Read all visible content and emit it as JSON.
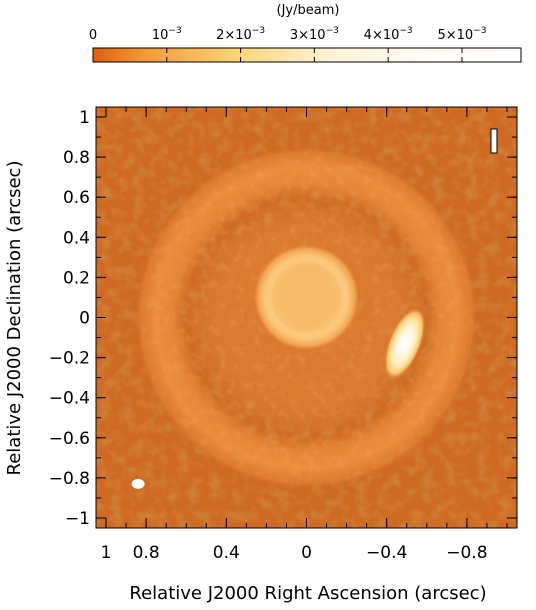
{
  "chart_data": {
    "type": "heatmap",
    "colorbar": {
      "unit_label": "(Jy/beam)",
      "tick_labels": [
        {
          "base": "0",
          "exp": ""
        },
        {
          "base": "10",
          "exp": "−3"
        },
        {
          "base": "2×10",
          "exp": "−3"
        },
        {
          "base": "3×10",
          "exp": "−3"
        },
        {
          "base": "4×10",
          "exp": "−3"
        },
        {
          "base": "5×10",
          "exp": "−3"
        }
      ],
      "tick_values": [
        0,
        0.001,
        0.002,
        0.003,
        0.004,
        0.005
      ],
      "range": [
        0,
        0.0058
      ],
      "colors": [
        "#e06010",
        "#f29a35",
        "#fcd77e",
        "#fffaf0",
        "#ffffff"
      ]
    },
    "xlabel": "Relative J2000 Right Ascension (arcsec)",
    "ylabel": "Relative J2000 Declination (arcsec)",
    "xlim": [
      1.05,
      -1.05
    ],
    "ylim": [
      -1.05,
      1.05
    ],
    "x_ticks": [
      1,
      0.8,
      0.4,
      0,
      -0.4,
      -0.8
    ],
    "x_tick_labels": [
      "1",
      "0.8",
      "0.4",
      "0",
      "−0.4",
      "−0.8"
    ],
    "y_ticks": [
      1,
      0.8,
      0.6,
      0.4,
      0.2,
      0,
      -0.2,
      -0.4,
      -0.6,
      -0.8,
      -1
    ],
    "y_tick_labels": [
      "1",
      "0.8",
      "0.6",
      "0.4",
      "0.2",
      "0",
      "−0.2",
      "−0.4",
      "−0.6",
      "−0.8",
      "−1"
    ],
    "features": [
      {
        "name": "outer ring",
        "center": [
          0,
          0
        ],
        "radius_arcsec": 0.75,
        "brightness": "moderate"
      },
      {
        "name": "inner disk",
        "center": [
          0,
          0.1
        ],
        "radius_arcsec": 0.24,
        "brightness": "high"
      },
      {
        "name": "bright clump",
        "center": [
          -0.49,
          -0.13
        ],
        "brightness": "saturated"
      },
      {
        "name": "beam",
        "center": [
          0.84,
          -0.83
        ]
      }
    ],
    "background_color": "#cf6a22"
  }
}
